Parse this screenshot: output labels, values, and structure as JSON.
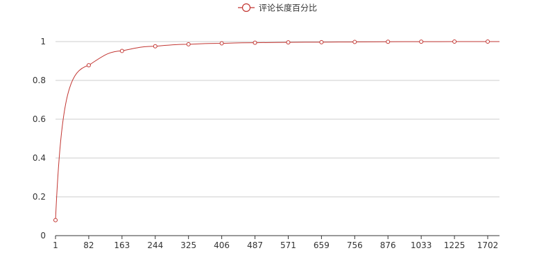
{
  "chart_data": {
    "type": "line",
    "title": "",
    "xlabel": "",
    "ylabel": "",
    "legend": {
      "position": "top-center",
      "items": [
        "评论长度百分比"
      ]
    },
    "categories": [
      "1",
      "82",
      "163",
      "244",
      "325",
      "406",
      "487",
      "571",
      "659",
      "756",
      "876",
      "1033",
      "1225",
      "1702"
    ],
    "series": [
      {
        "name": "评论长度百分比",
        "values": [
          0.08,
          0.878,
          0.952,
          0.976,
          0.986,
          0.991,
          0.994,
          0.996,
          0.997,
          0.998,
          0.999,
          0.9995,
          0.9998,
          1.0
        ],
        "color": "#c23531",
        "smooth": true
      }
    ],
    "ylim": [
      0,
      1
    ],
    "yticks": [
      "0",
      "0.2",
      "0.4",
      "0.6",
      "0.8",
      "1"
    ],
    "grid": "horizontal",
    "colors": {
      "line": "#c23531",
      "axis": "#333333",
      "grid": "#cccccc",
      "text": "#333333"
    }
  }
}
